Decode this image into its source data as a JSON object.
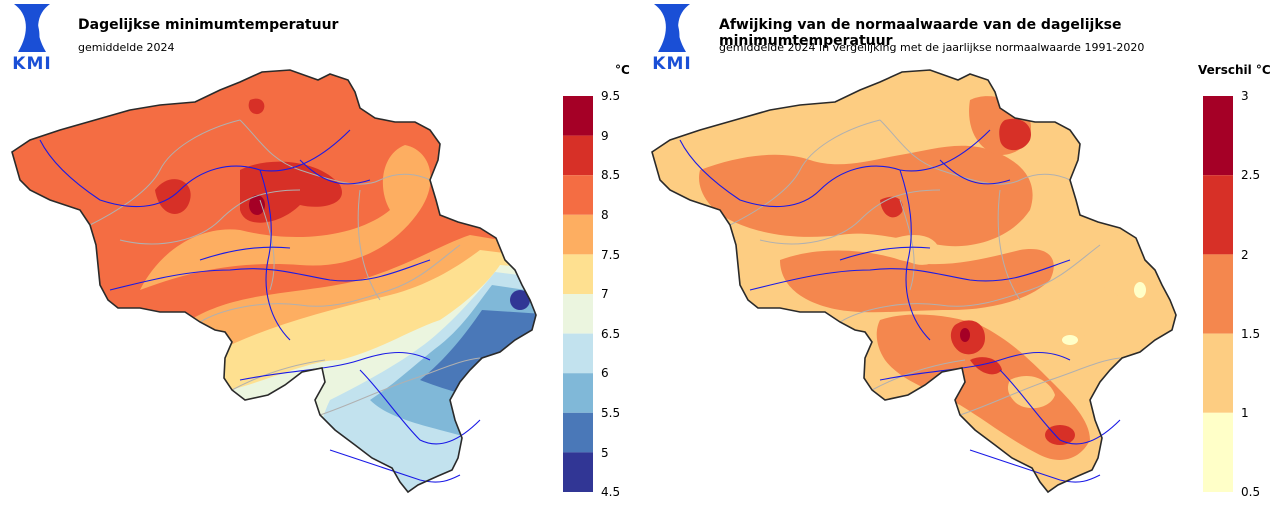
{
  "brand": {
    "logo_text": "KMI"
  },
  "left_map": {
    "title": "Dagelijkse minimumtemperatuur",
    "subtitle": "gemiddelde 2024",
    "unit": "°C",
    "legend": {
      "ticks": [
        "9.5",
        "9",
        "8.5",
        "8",
        "7.5",
        "7",
        "6.5",
        "6",
        "5.5",
        "5",
        "4.5"
      ],
      "colors": [
        "#a50026",
        "#d73027",
        "#f46d43",
        "#fdae61",
        "#fee090",
        "#ebf5df",
        "#c2e2ee",
        "#80b8d8",
        "#4a78b8",
        "#313695"
      ]
    }
  },
  "right_map": {
    "title": "Afwijking van de normaalwaarde van de dagelijkse minimumtemperatuur",
    "subtitle": "gemiddelde 2024 in vergelijking met de jaarlijkse normaalwaarde 1991-2020",
    "unit": "Verschil °C",
    "legend": {
      "ticks": [
        "3",
        "2.5",
        "2",
        "1.5",
        "1",
        "0.5"
      ],
      "colors": [
        "#a50026",
        "#d73027",
        "#f4874e",
        "#fdcd82",
        "#ffffc8"
      ]
    }
  }
}
